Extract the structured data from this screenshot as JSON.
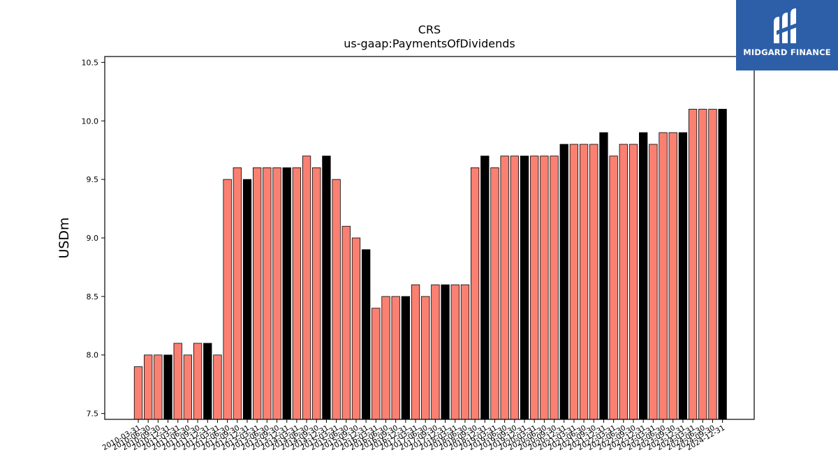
{
  "chart_data": {
    "type": "bar",
    "title": "CRS",
    "subtitle": "us-gaap:PaymentsOfDividends",
    "xlabel": "",
    "ylabel": "USDm",
    "ylim": [
      7.45,
      10.55
    ],
    "yticks": [
      "7.5",
      "8.0",
      "8.5",
      "9.0",
      "9.5",
      "10.0",
      "10.5"
    ],
    "grid": false,
    "legend": "none",
    "colors": {
      "quarter": "#fa8072",
      "annual": "#000000",
      "edge": "#000000"
    },
    "categories": [
      "2010-03-31",
      "2010-06-30",
      "2010-09-30",
      "2010-12-31",
      "2011-03-31",
      "2011-06-30",
      "2011-09-30",
      "2011-12-31",
      "2012-03-31",
      "2012-06-30",
      "2012-09-30",
      "2012-12-31",
      "2013-03-31",
      "2013-06-30",
      "2013-09-30",
      "2013-12-31",
      "2014-03-31",
      "2014-06-30",
      "2014-09-30",
      "2014-12-31",
      "2015-03-31",
      "2015-06-30",
      "2015-09-30",
      "2015-12-31",
      "2016-03-31",
      "2016-06-30",
      "2016-09-30",
      "2016-12-31",
      "2017-03-31",
      "2017-06-30",
      "2017-09-30",
      "2017-12-31",
      "2018-03-31",
      "2018-06-30",
      "2018-09-30",
      "2018-12-31",
      "2019-03-31",
      "2019-06-30",
      "2019-09-30",
      "2019-12-31",
      "2020-03-31",
      "2020-06-30",
      "2020-09-30",
      "2020-12-31",
      "2021-03-31",
      "2021-06-30",
      "2021-09-30",
      "2021-12-31",
      "2022-03-31",
      "2022-06-30",
      "2022-09-30",
      "2022-12-31",
      "2023-03-31",
      "2023-06-30",
      "2023-09-30",
      "2023-12-31",
      "2024-03-31",
      "2024-06-30",
      "2024-09-30",
      "2024-12-31"
    ],
    "values": [
      7.9,
      8.0,
      8.0,
      8.0,
      8.1,
      8.0,
      8.1,
      8.1,
      8.0,
      9.5,
      9.6,
      9.5,
      9.6,
      9.6,
      9.6,
      9.6,
      9.6,
      9.7,
      9.6,
      9.7,
      9.5,
      9.1,
      9.0,
      8.9,
      8.4,
      8.5,
      8.5,
      8.5,
      8.6,
      8.5,
      8.6,
      8.6,
      8.6,
      8.6,
      9.6,
      9.7,
      9.6,
      9.7,
      9.7,
      9.7,
      9.7,
      9.7,
      9.7,
      9.8,
      9.8,
      9.8,
      9.8,
      9.9,
      9.7,
      9.8,
      9.8,
      9.9,
      9.8,
      9.9,
      9.9,
      9.9,
      10.1,
      10.1,
      10.1,
      10.1
    ],
    "highlight_annual": [
      3,
      7,
      11,
      15,
      19,
      23,
      27,
      31,
      35,
      39,
      43,
      47,
      51,
      55,
      59
    ]
  },
  "logo": {
    "text": "MIDGARD FINANCE"
  }
}
